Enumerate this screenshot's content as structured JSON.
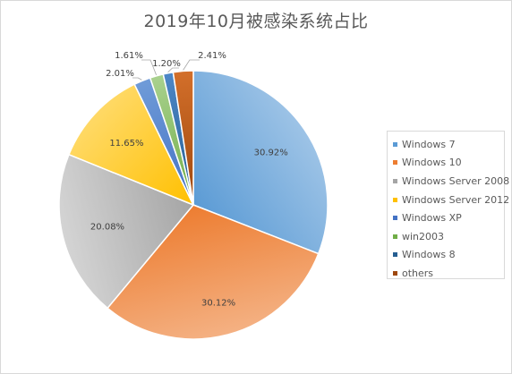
{
  "chart_data": {
    "type": "pie",
    "title": "2019年10月被感染系统占比",
    "legend_position": "right",
    "slices": [
      {
        "name": "Windows 7",
        "value": 30.92,
        "label": "30.92%",
        "color_light": "#9dc3e6",
        "color_dark": "#5b9bd5"
      },
      {
        "name": "Windows 10",
        "value": 30.12,
        "label": "30.12%",
        "color_light": "#f4b183",
        "color_dark": "#ed7d31"
      },
      {
        "name": "Windows Server 2008",
        "value": 20.08,
        "label": "20.08%",
        "color_light": "#d4d4d4",
        "color_dark": "#a5a5a5"
      },
      {
        "name": "Windows Server 2012",
        "value": 11.65,
        "label": "11.65%",
        "color_light": "#ffd966",
        "color_dark": "#ffc000"
      },
      {
        "name": "Windows XP",
        "value": 2.01,
        "label": "2.01%",
        "color_light": "#6f9bd8",
        "color_dark": "#4472c4"
      },
      {
        "name": "win2003",
        "value": 1.61,
        "label": "1.61%",
        "color_light": "#a9d18e",
        "color_dark": "#70ad47"
      },
      {
        "name": "Windows 8",
        "value": 1.2,
        "label": "1.20%",
        "color_light": "#4d87c7",
        "color_dark": "#255e91"
      },
      {
        "name": "others",
        "value": 2.41,
        "label": "2.41%",
        "color_light": "#d36f2a",
        "color_dark": "#9e480e"
      }
    ]
  }
}
